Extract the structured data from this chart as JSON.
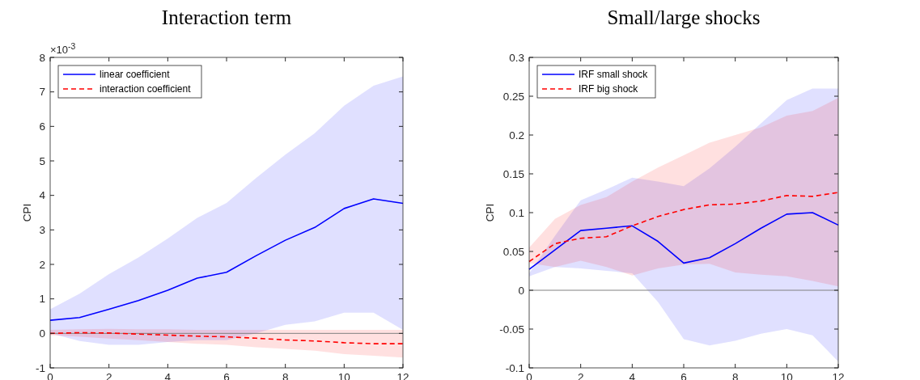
{
  "chart_data": [
    {
      "type": "line",
      "title": "Interaction term",
      "ylabel": "CPI",
      "annotations": [
        "×10$^{-3}$"
      ],
      "x": [
        0,
        1,
        2,
        3,
        4,
        5,
        6,
        7,
        8,
        9,
        10,
        11,
        12
      ],
      "xlim": [
        0,
        12
      ],
      "xticks": [
        0,
        2,
        4,
        6,
        8,
        10,
        12
      ],
      "ylim": [
        -1,
        8
      ],
      "yticks": [
        -1,
        0,
        1,
        2,
        3,
        4,
        5,
        6,
        7,
        8
      ],
      "legend": "top left",
      "ref_lines": [
        {
          "axis": "y",
          "value": 0,
          "color": "#808080"
        }
      ],
      "series": [
        {
          "name": "linear coefficient",
          "color": "#0000ff",
          "line_style": "solid",
          "values": [
            0.38,
            0.46,
            0.7,
            0.95,
            1.25,
            1.6,
            1.77,
            2.25,
            2.7,
            3.07,
            3.62,
            3.9,
            3.77
          ],
          "lower": [
            0,
            -0.22,
            -0.33,
            -0.33,
            -0.25,
            -0.2,
            -0.2,
            0,
            0.25,
            0.35,
            0.6,
            0.6,
            0.1
          ],
          "upper": [
            0.7,
            1.15,
            1.72,
            2.2,
            2.75,
            3.35,
            3.78,
            4.5,
            5.18,
            5.8,
            6.6,
            7.18,
            7.45
          ]
        },
        {
          "name": "interaction coefficient",
          "color": "#ff0000",
          "line_style": "dashed",
          "values": [
            0,
            0.02,
            0.01,
            -0.02,
            -0.05,
            -0.08,
            -0.1,
            -0.14,
            -0.19,
            -0.22,
            -0.27,
            -0.3,
            -0.3
          ],
          "lower": [
            -0.05,
            -0.1,
            -0.15,
            -0.2,
            -0.25,
            -0.3,
            -0.33,
            -0.4,
            -0.45,
            -0.5,
            -0.6,
            -0.65,
            -0.7
          ],
          "upper": [
            0.1,
            0.12,
            0.13,
            0.12,
            0.12,
            0.1,
            0.1,
            0.1,
            0.1,
            0.1,
            0.1,
            0.1,
            0.1
          ]
        }
      ]
    },
    {
      "type": "line",
      "title": "Small/large shocks",
      "ylabel": "CPI",
      "x": [
        0,
        1,
        2,
        3,
        4,
        5,
        6,
        7,
        8,
        9,
        10,
        11,
        12
      ],
      "xlim": [
        0,
        12
      ],
      "xticks": [
        0,
        2,
        4,
        6,
        8,
        10,
        12
      ],
      "ylim": [
        -0.1,
        0.3
      ],
      "yticks": [
        -0.1,
        -0.05,
        0,
        0.05,
        0.1,
        0.15,
        0.2,
        0.25,
        0.3
      ],
      "legend": "top left",
      "ref_lines": [
        {
          "axis": "y",
          "value": 0,
          "color": "#808080"
        }
      ],
      "series": [
        {
          "name": "IRF small shock",
          "color": "#0000ff",
          "line_style": "solid",
          "values": [
            0.027,
            0.052,
            0.077,
            0.08,
            0.083,
            0.063,
            0.035,
            0.042,
            0.06,
            0.08,
            0.098,
            0.1,
            0.084
          ],
          "lower": [
            0.018,
            0.03,
            0.028,
            0.025,
            0.022,
            -0.015,
            -0.063,
            -0.071,
            -0.065,
            -0.056,
            -0.05,
            -0.058,
            -0.092
          ],
          "upper": [
            0.022,
            0.07,
            0.116,
            0.13,
            0.145,
            0.14,
            0.134,
            0.157,
            0.185,
            0.215,
            0.245,
            0.26,
            0.26
          ]
        },
        {
          "name": "IRF big shock",
          "color": "#ff0000",
          "line_style": "dashed",
          "values": [
            0.037,
            0.06,
            0.067,
            0.069,
            0.083,
            0.095,
            0.104,
            0.11,
            0.111,
            0.115,
            0.122,
            0.121,
            0.126
          ],
          "lower": [
            0.035,
            0.03,
            0.038,
            0.03,
            0.019,
            0.028,
            0.033,
            0.034,
            0.023,
            0.02,
            0.018,
            0.012,
            0.005
          ],
          "upper": [
            0.055,
            0.092,
            0.11,
            0.12,
            0.14,
            0.158,
            0.174,
            0.19,
            0.2,
            0.21,
            0.225,
            0.231,
            0.248
          ]
        }
      ]
    }
  ]
}
